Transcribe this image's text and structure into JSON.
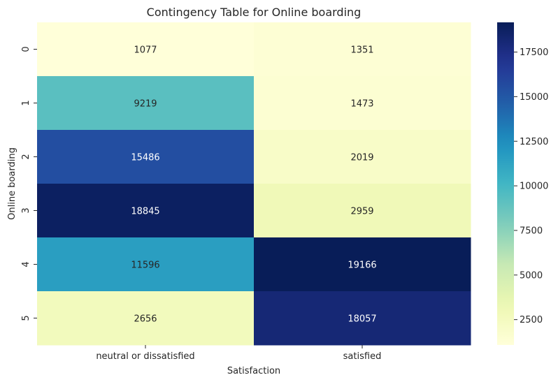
{
  "chart_data": {
    "type": "heatmap",
    "title": "Contingency Table for Online boarding",
    "xlabel": "Satisfaction",
    "ylabel": "Online boarding",
    "x_categories": [
      "neutral or dissatisfied",
      "satisfied"
    ],
    "y_categories": [
      "0",
      "1",
      "2",
      "3",
      "4",
      "5"
    ],
    "values": [
      [
        1077,
        1351
      ],
      [
        9219,
        1473
      ],
      [
        15486,
        2019
      ],
      [
        18845,
        2959
      ],
      [
        11596,
        19166
      ],
      [
        2656,
        18057
      ]
    ],
    "colormap": "YlGnBu",
    "colorbar": {
      "min": 1077,
      "max": 19166,
      "ticks": [
        2500,
        5000,
        7500,
        10000,
        12500,
        15000,
        17500
      ]
    }
  }
}
